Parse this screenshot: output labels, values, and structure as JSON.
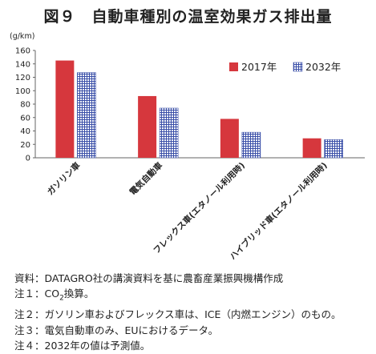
{
  "title": "図９　自動車種別の温室効果ガス排出量",
  "chart_data": {
    "type": "bar",
    "unit_label": "(g/km)",
    "categories": [
      "ガソリン車",
      "電気自動車",
      "フレックス車(エタノール利用時)",
      "ハイブリッド車(エタノール利用時)"
    ],
    "series": [
      {
        "name": "2017年",
        "values": [
          145,
          92,
          58,
          29
        ]
      },
      {
        "name": "2032年",
        "values": [
          127,
          74,
          38,
          27
        ]
      }
    ],
    "ylim": [
      0,
      160
    ],
    "yticks": [
      0,
      20,
      40,
      60,
      80,
      100,
      120,
      140,
      160
    ],
    "legend_position": "top-right",
    "colors": {
      "2017年": "#d6373d",
      "2032年": "#3a4fa8"
    }
  },
  "notes": {
    "source": "資料：DATAGRO社の講演資料を基に農畜産業振興機構作成",
    "note1_pre": "注１：CO",
    "note1_sub": "2",
    "note1_post": "換算。",
    "note2": "注２：ガソリン車およびフレックス車は、ICE（内燃エンジン）のもの。",
    "note3": "注３：電気自動車のみ、EUにおけるデータ。",
    "note4": "注４：2032年の値は予測値。"
  }
}
